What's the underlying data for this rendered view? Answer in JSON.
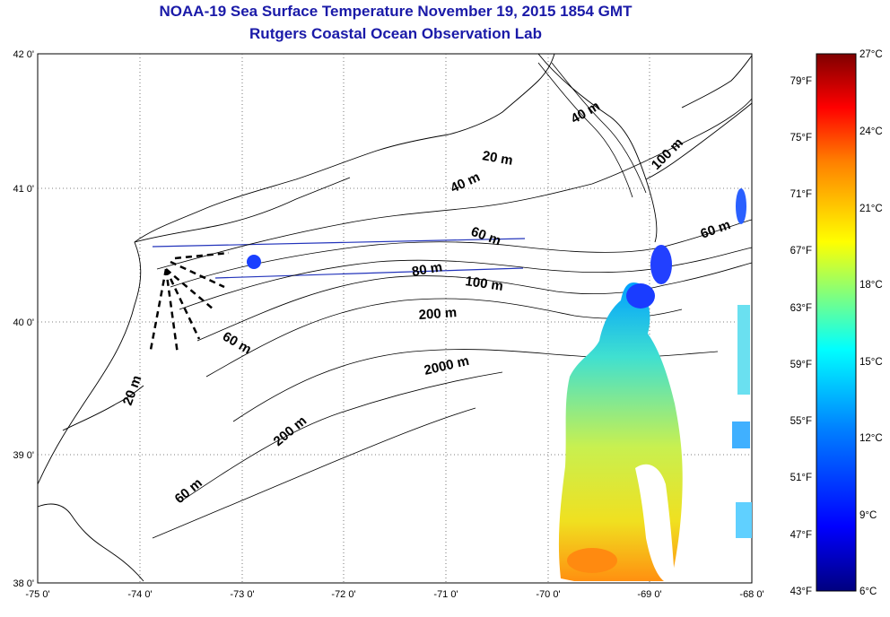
{
  "title_line1": "NOAA-19 Sea Surface Temperature November 19, 2015 1854 GMT",
  "title_line2": "Rutgers Coastal Ocean Observation Lab",
  "x_ticks": [
    "-75 0'",
    "-74 0'",
    "-73 0'",
    "-72 0'",
    "-71 0'",
    "-70 0'",
    "-69 0'",
    "-68 0'"
  ],
  "y_ticks": [
    "42 0'",
    "41 0'",
    "40 0'",
    "39 0'",
    "38 0'"
  ],
  "isobath_labels": [
    "40 m",
    "100 m",
    "20 m",
    "40 m",
    "60 m",
    "60 m",
    "80 m",
    "100 m",
    "200 m",
    "60 m",
    "20 m",
    "2000 m",
    "200 m",
    "60 m"
  ],
  "colorbar_f_labels": [
    "79°F",
    "75°F",
    "71°F",
    "67°F",
    "63°F",
    "59°F",
    "55°F",
    "51°F",
    "47°F",
    "43°F"
  ],
  "colorbar_c_labels": [
    "27°C",
    "24°C",
    "21°C",
    "18°C",
    "15°C",
    "12°C",
    "9°C",
    "6°C"
  ],
  "colormap": [
    "#00007f",
    "#0000ff",
    "#007fff",
    "#00ffff",
    "#7fff7f",
    "#ffff00",
    "#ff7f00",
    "#ff0000",
    "#7f0000"
  ]
}
